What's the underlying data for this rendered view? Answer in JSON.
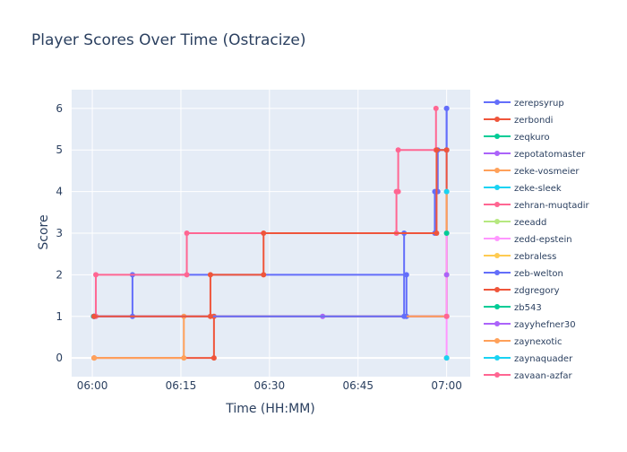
{
  "chart_data": {
    "type": "line",
    "line_shape": "step",
    "title": "Player Scores Over Time (Ostracize)",
    "xlabel": "Time (HH:MM)",
    "ylabel": "Score",
    "x_ticks": [
      "06:00",
      "06:15",
      "06:30",
      "06:45",
      "07:00"
    ],
    "x_tick_minutes": [
      0,
      15,
      30,
      45,
      60
    ],
    "xlim_minutes": [
      -3.5,
      64.0
    ],
    "y_ticks": [
      0,
      1,
      2,
      3,
      4,
      5,
      6
    ],
    "ylim": [
      -0.45,
      6.45
    ],
    "grid": true,
    "legend_position": "right",
    "plot_bg": "#E5ECF6",
    "series": [
      {
        "name": "zerepsyrup",
        "color": "#636EFA",
        "points": [
          [
            0.3,
            1
          ],
          [
            6.8,
            1
          ],
          [
            6.8,
            2
          ],
          [
            53.2,
            2
          ],
          [
            53.2,
            1
          ],
          [
            60,
            1
          ],
          [
            60,
            6
          ]
        ]
      },
      {
        "name": "zerbondi",
        "color": "#EF553B",
        "points": [
          [
            0.3,
            0
          ],
          [
            20.6,
            0
          ],
          [
            20.6,
            1
          ],
          [
            60,
            1
          ],
          [
            60,
            5
          ]
        ]
      },
      {
        "name": "zeqkuro",
        "color": "#00CC96",
        "points": [
          [
            0.2,
            1
          ]
        ]
      },
      {
        "name": "zepotatomaster",
        "color": "#AB63FA",
        "points": [
          [
            0.3,
            1
          ],
          [
            39.0,
            1
          ],
          [
            60,
            1
          ]
        ]
      },
      {
        "name": "zeke-vosmeier",
        "color": "#FFA15A",
        "points": [
          [
            0.3,
            0
          ],
          [
            15.5,
            0
          ],
          [
            15.5,
            1
          ],
          [
            60,
            1
          ],
          [
            60,
            4
          ]
        ]
      },
      {
        "name": "zeke-sleek",
        "color": "#19D3F3",
        "points": [
          [
            60,
            4
          ]
        ]
      },
      {
        "name": "zehran-muqtadir",
        "color": "#FF6692",
        "points": [
          [
            0.6,
            1
          ],
          [
            0.6,
            2
          ],
          [
            16.0,
            2
          ],
          [
            16.0,
            3
          ],
          [
            51.5,
            3
          ],
          [
            51.5,
            4
          ],
          [
            51.8,
            4
          ],
          [
            51.8,
            5
          ],
          [
            58.2,
            5
          ],
          [
            58.2,
            6
          ]
        ]
      },
      {
        "name": "zeeadd",
        "color": "#B6E880",
        "points": [
          [
            60,
            3
          ]
        ]
      },
      {
        "name": "zedd-epstein",
        "color": "#FF97FF",
        "points": [
          [
            60,
            0
          ],
          [
            60,
            1
          ],
          [
            60,
            3
          ]
        ]
      },
      {
        "name": "zebraless",
        "color": "#FECB52",
        "points": [
          [
            60,
            2
          ]
        ]
      },
      {
        "name": "zeb-welton",
        "color": "#636EFA",
        "points": [
          [
            0.3,
            1
          ],
          [
            52.8,
            1
          ],
          [
            52.8,
            3
          ],
          [
            58.0,
            3
          ],
          [
            58.0,
            4
          ],
          [
            58.5,
            4
          ],
          [
            58.5,
            5
          ],
          [
            60,
            5
          ],
          [
            60,
            6
          ]
        ]
      },
      {
        "name": "zdgregory",
        "color": "#EF553B",
        "points": [
          [
            0.3,
            1
          ],
          [
            20.0,
            1
          ],
          [
            20.0,
            2
          ],
          [
            29.0,
            2
          ],
          [
            29.0,
            3
          ],
          [
            58.3,
            3
          ],
          [
            58.3,
            5
          ],
          [
            60,
            5
          ]
        ]
      },
      {
        "name": "zb543",
        "color": "#00CC96",
        "points": [
          [
            60,
            3
          ]
        ]
      },
      {
        "name": "zayyhefner30",
        "color": "#AB63FA",
        "points": [
          [
            60,
            2
          ]
        ]
      },
      {
        "name": "zaynexotic",
        "color": "#FFA15A",
        "points": [
          [
            60,
            0
          ]
        ]
      },
      {
        "name": "zaynaquader",
        "color": "#19D3F3",
        "points": [
          [
            60,
            0
          ]
        ]
      },
      {
        "name": "zayaan-azfar",
        "color": "#FF6692",
        "points": [
          [
            60,
            1
          ]
        ]
      }
    ]
  }
}
